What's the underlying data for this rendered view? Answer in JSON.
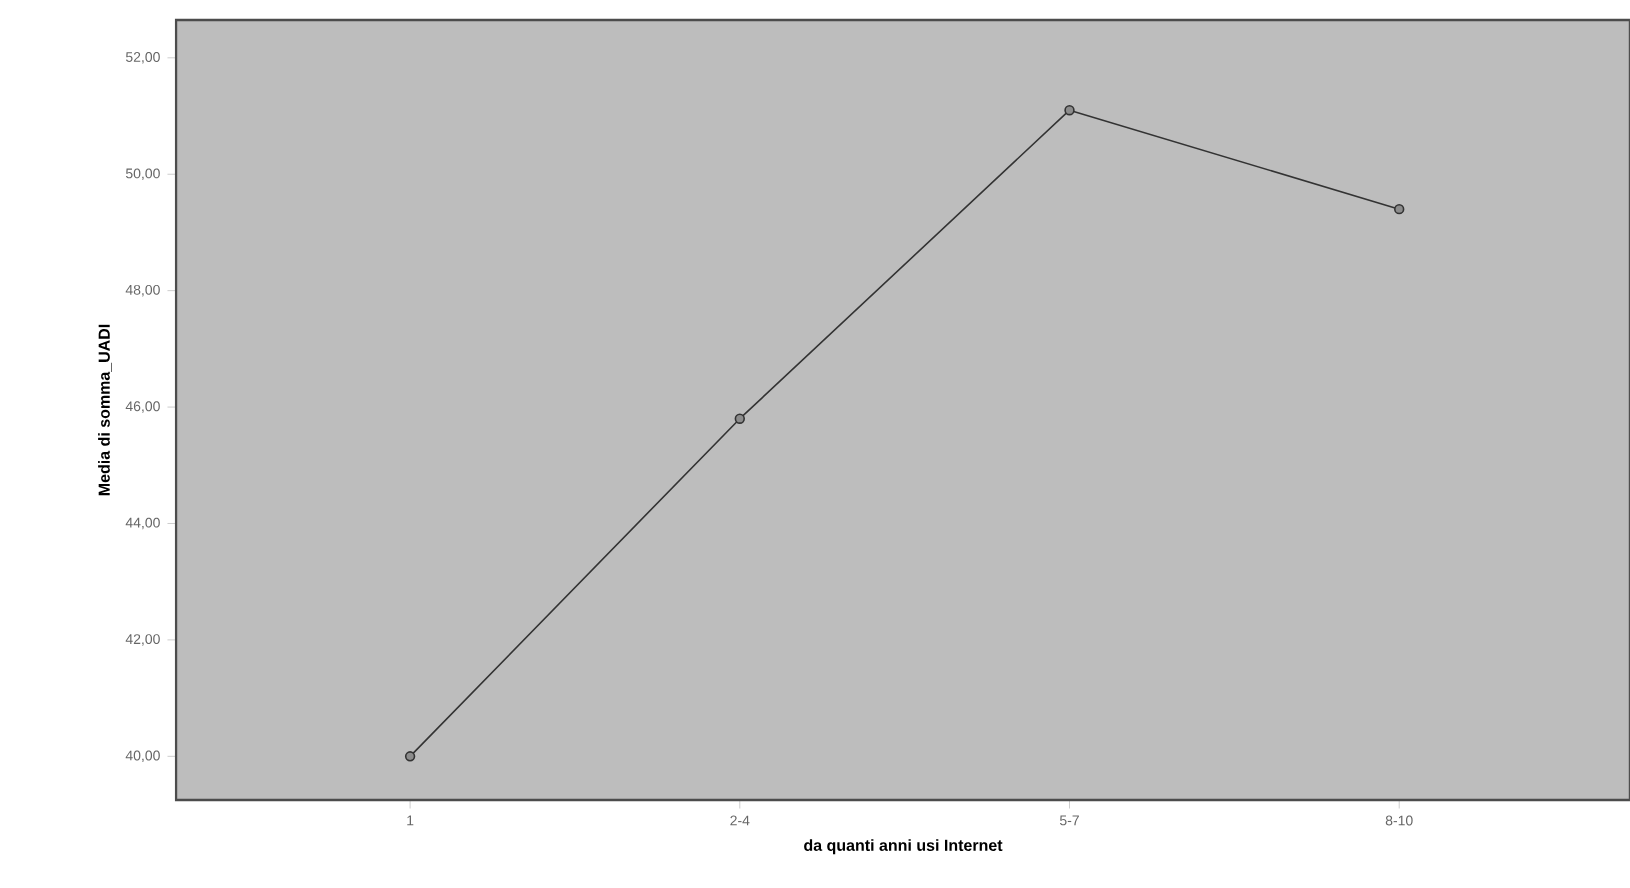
{
  "chart_data": {
    "type": "line",
    "xlabel": "da quanti anni usi Internet",
    "ylabel": "Media di somma_UADI",
    "categories": [
      "1",
      "2-4",
      "5-7",
      "8-10"
    ],
    "values": [
      40.0,
      45.8,
      51.1,
      49.4
    ],
    "color": "#333333",
    "marker": "circle",
    "line_style": "solid",
    "ylim": [
      39.25,
      52.65
    ],
    "yticks": [
      {
        "value": 40,
        "label": "40,00"
      },
      {
        "value": 42,
        "label": "42,00"
      },
      {
        "value": 44,
        "label": "44,00"
      },
      {
        "value": 46,
        "label": "46,00"
      },
      {
        "value": 48,
        "label": "48,00"
      },
      {
        "value": 50,
        "label": "50,00"
      },
      {
        "value": 52,
        "label": "52,00"
      }
    ]
  }
}
